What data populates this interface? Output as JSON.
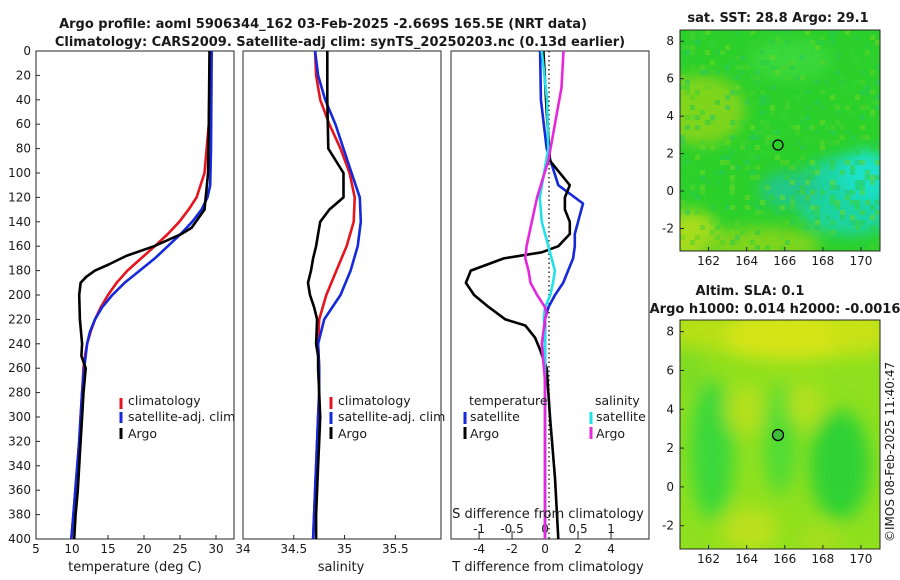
{
  "title": {
    "line1": "Argo profile: aoml 5906344_162 03-Feb-2025 -2.669S 165.5E (NRT data)",
    "line2": "Climatology: CARS2009. Satellite-adj clim: synTS_20250203.nc (0.13d earlier)"
  },
  "copyright": "©IMOS 08-Feb-2025 11:40:47",
  "colors": {
    "climatology": "#e6141e",
    "satellite": "#1428dc",
    "argo": "#000000",
    "sal_satellite": "#23e1e6",
    "sal_argo": "#e628dc"
  },
  "chart_data": [
    {
      "type": "line",
      "id": "temperature",
      "xlabel": "temperature (deg C)",
      "ylabel": "",
      "xlim": [
        5,
        32.5
      ],
      "ylim": [
        400,
        0
      ],
      "xticks": [
        "5",
        "10",
        "15",
        "20",
        "25",
        "30"
      ],
      "yticks": [
        "0",
        "20",
        "40",
        "60",
        "80",
        "100",
        "120",
        "140",
        "160",
        "180",
        "200",
        "220",
        "240",
        "260",
        "280",
        "300",
        "320",
        "340",
        "360",
        "380",
        "400"
      ],
      "legend": [
        "climatology",
        "satellite-adj. clim",
        "Argo"
      ],
      "series": [
        {
          "name": "climatology",
          "depth": [
            0,
            60,
            100,
            120,
            130,
            140,
            150,
            160,
            170,
            180,
            190,
            200,
            210,
            220,
            230,
            240,
            250,
            260,
            280,
            300,
            320,
            350,
            380,
            400
          ],
          "values": [
            29.2,
            29.0,
            28.4,
            27.3,
            26.2,
            24.9,
            23.3,
            21.5,
            19.6,
            17.7,
            16.2,
            15.0,
            14.0,
            13.2,
            12.6,
            12.1,
            11.8,
            11.6,
            11.4,
            11.2,
            11.0,
            10.6,
            10.2,
            9.9
          ]
        },
        {
          "name": "satellite-adj. clim",
          "depth": [
            0,
            80,
            110,
            120,
            130,
            140,
            150,
            160,
            170,
            180,
            190,
            200,
            210,
            220,
            230,
            240,
            260,
            280,
            300,
            320,
            350,
            380,
            400
          ],
          "values": [
            29.4,
            29.3,
            29.2,
            28.8,
            28.0,
            26.7,
            25.1,
            23.3,
            21.5,
            19.4,
            17.3,
            15.6,
            14.2,
            13.2,
            12.5,
            12.1,
            11.7,
            11.4,
            11.2,
            11.0,
            10.6,
            10.2,
            9.9
          ]
        },
        {
          "name": "Argo",
          "depth": [
            0,
            60,
            100,
            130,
            145,
            150,
            160,
            168,
            175,
            180,
            185,
            190,
            200,
            220,
            240,
            250,
            260,
            280,
            300,
            320,
            340,
            360,
            380,
            400
          ],
          "values": [
            29.1,
            29.0,
            28.9,
            28.4,
            26.6,
            25.2,
            21.4,
            17.5,
            15.1,
            13.2,
            12.0,
            11.2,
            11.0,
            11.1,
            11.4,
            11.3,
            11.9,
            11.6,
            11.4,
            11.2,
            11.0,
            10.8,
            10.5,
            10.3
          ]
        }
      ]
    },
    {
      "type": "line",
      "id": "salinity",
      "xlabel": "salinity",
      "xlim": [
        34,
        35.95
      ],
      "ylim": [
        400,
        0
      ],
      "xticks": [
        "34",
        "34.5",
        "35",
        "35.5"
      ],
      "legend": [
        "climatology",
        "satellite-adj. clim",
        "Argo"
      ],
      "series": [
        {
          "name": "climatology",
          "depth": [
            0,
            20,
            40,
            60,
            80,
            100,
            120,
            140,
            160,
            180,
            200,
            220,
            240,
            260,
            280,
            300,
            320,
            340,
            360,
            380,
            400
          ],
          "values": [
            34.71,
            34.72,
            34.76,
            34.85,
            34.96,
            35.05,
            35.1,
            35.09,
            35.02,
            34.92,
            34.82,
            34.75,
            34.74,
            34.75,
            34.75,
            34.74,
            34.73,
            34.72,
            34.71,
            34.7,
            34.69
          ]
        },
        {
          "name": "satellite-adj. clim",
          "depth": [
            0,
            20,
            40,
            60,
            80,
            100,
            120,
            140,
            160,
            180,
            200,
            220,
            240,
            260,
            280,
            300,
            320,
            340,
            360,
            380,
            400
          ],
          "values": [
            34.71,
            34.74,
            34.81,
            34.91,
            34.99,
            35.07,
            35.15,
            35.16,
            35.13,
            35.06,
            34.96,
            34.8,
            34.74,
            34.75,
            34.75,
            34.74,
            34.73,
            34.72,
            34.71,
            34.7,
            34.69
          ]
        },
        {
          "name": "Argo",
          "depth": [
            0,
            40,
            80,
            100,
            120,
            130,
            140,
            150,
            160,
            170,
            180,
            190,
            200,
            210,
            220,
            240,
            250,
            260,
            280,
            300,
            320,
            340,
            360,
            380,
            400
          ],
          "values": [
            34.83,
            34.83,
            34.84,
            34.99,
            34.99,
            34.85,
            34.76,
            34.74,
            34.72,
            34.69,
            34.67,
            34.64,
            34.66,
            34.7,
            34.73,
            34.72,
            34.74,
            34.74,
            34.75,
            34.76,
            34.75,
            34.74,
            34.73,
            34.72,
            34.72
          ]
        }
      ]
    },
    {
      "type": "line",
      "id": "difference",
      "xlabel": "T difference from climatology",
      "xlabel_top": "S difference from climatology",
      "xlim": [
        -5.7,
        6.3
      ],
      "ylim": [
        400,
        0
      ],
      "xticks_T": [
        "-4",
        "-2",
        "0",
        "2",
        "4"
      ],
      "xticks_S": [
        "-1",
        "-0.5",
        "0",
        "0.5",
        "1"
      ],
      "legend_titles": [
        "temperature",
        "salinity"
      ],
      "legend_temperature": [
        "satellite",
        "Argo"
      ],
      "legend_salinity": [
        "satellite",
        "Argo"
      ],
      "series": [
        {
          "name": "T satellite",
          "axis": "T",
          "depth": [
            0,
            40,
            80,
            110,
            125,
            135,
            150,
            160,
            170,
            180,
            190,
            200,
            210,
            220,
            230,
            240,
            260,
            300,
            350,
            400
          ],
          "values": [
            -0.3,
            -0.25,
            0.1,
            0.8,
            2.3,
            2.1,
            1.8,
            1.8,
            1.7,
            1.4,
            1.1,
            0.6,
            0.2,
            0.0,
            0.0,
            0.0,
            0.0,
            0.0,
            0.0,
            0.0
          ]
        },
        {
          "name": "T Argo",
          "axis": "T",
          "depth": [
            0,
            50,
            90,
            110,
            120,
            130,
            140,
            150,
            160,
            165,
            170,
            180,
            190,
            200,
            210,
            220,
            225,
            235,
            245,
            260,
            300,
            350,
            400
          ],
          "values": [
            -0.1,
            0.1,
            0.3,
            1.5,
            1.2,
            1.2,
            1.5,
            1.5,
            0.8,
            -0.2,
            -2.5,
            -4.5,
            -4.8,
            -4.3,
            -3.4,
            -2.4,
            -1.2,
            -0.6,
            -0.3,
            0.1,
            0.3,
            0.6,
            0.8
          ]
        },
        {
          "name": "S satellite",
          "axis": "S",
          "depth": [
            0,
            40,
            80,
            120,
            140,
            160,
            170,
            180,
            190,
            200,
            210,
            220,
            230,
            240,
            260,
            300,
            350,
            400
          ],
          "values": [
            -0.05,
            0.03,
            0.05,
            -0.08,
            -0.05,
            0.05,
            0.1,
            0.15,
            0.12,
            0.08,
            0.0,
            -0.02,
            0.0,
            0.0,
            0.0,
            0.0,
            0.0,
            0.0
          ]
        },
        {
          "name": "S Argo",
          "axis": "S",
          "depth": [
            0,
            30,
            60,
            90,
            120,
            140,
            160,
            170,
            180,
            190,
            200,
            210,
            215,
            220,
            240,
            270,
            300,
            350,
            400
          ],
          "values": [
            0.28,
            0.25,
            0.15,
            0.05,
            -0.12,
            -0.2,
            -0.28,
            -0.3,
            -0.25,
            -0.22,
            -0.12,
            0.0,
            0.02,
            0.0,
            -0.05,
            0.0,
            0.0,
            0.0,
            0.0
          ]
        }
      ]
    },
    {
      "type": "heatmap",
      "id": "sst_map",
      "title": "sat. SST: 28.8 Argo: 29.1",
      "xlim": [
        160.5,
        171.0
      ],
      "ylim": [
        -3.2,
        8.6
      ],
      "xticks": [
        "162",
        "164",
        "166",
        "168",
        "170"
      ],
      "yticks": [
        "-2",
        "0",
        "2",
        "4",
        "6",
        "8"
      ],
      "argo_position": [
        165.5,
        -2.669
      ],
      "marker_at": [
        165.6,
        2.6
      ]
    },
    {
      "type": "heatmap",
      "id": "sla_map",
      "title": "Altim. SLA: 0.1",
      "subtitle": "Argo h1000: 0.014 h2000: -0.0016",
      "xlim": [
        160.5,
        171.0
      ],
      "ylim": [
        -3.2,
        8.6
      ],
      "xticks": [
        "162",
        "164",
        "166",
        "168",
        "170"
      ],
      "yticks": [
        "-2",
        "0",
        "2",
        "4",
        "6",
        "8"
      ],
      "marker_at": [
        165.5,
        2.7
      ]
    }
  ]
}
